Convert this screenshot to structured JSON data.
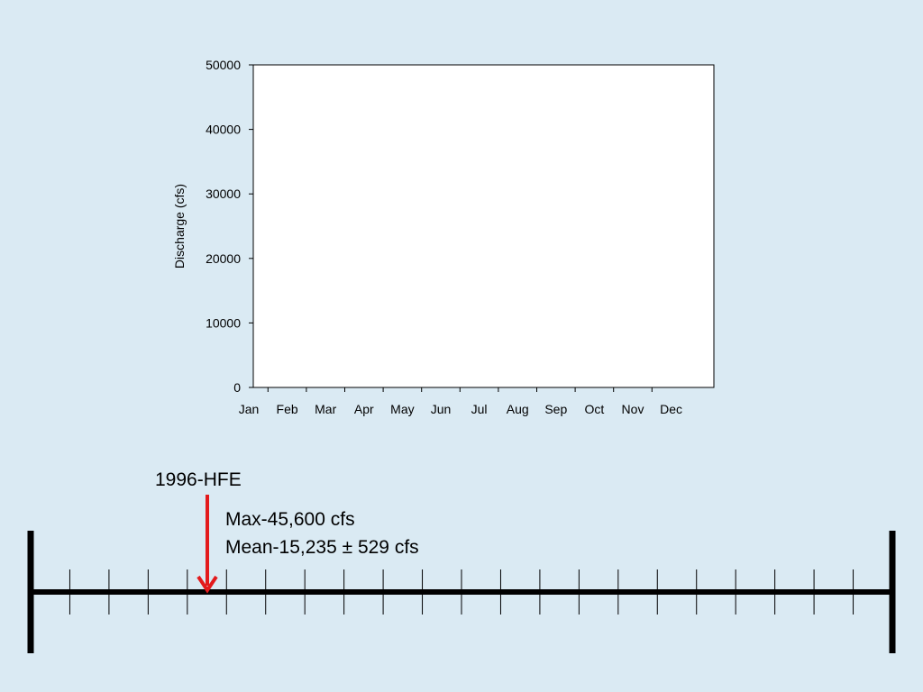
{
  "chart_data": {
    "type": "line",
    "title": "",
    "xlabel": "",
    "ylabel": "Discharge (cfs)",
    "categories": [
      "Jan",
      "Feb",
      "Mar",
      "Apr",
      "May",
      "Jun",
      "Jul",
      "Aug",
      "Sep",
      "Oct",
      "Nov",
      "Dec"
    ],
    "series": [],
    "ylim": [
      0,
      50000
    ],
    "yticks": [
      0,
      10000,
      20000,
      30000,
      40000,
      50000
    ],
    "grid": false,
    "legend": "none"
  },
  "timeline": {
    "event": {
      "label": "1996-HFE",
      "color": "#e31a1c"
    },
    "max_text": "Max-45,600 cfs",
    "mean_text": "Mean-15,235 ± 529 cfs",
    "minor_tick_count": 21
  }
}
